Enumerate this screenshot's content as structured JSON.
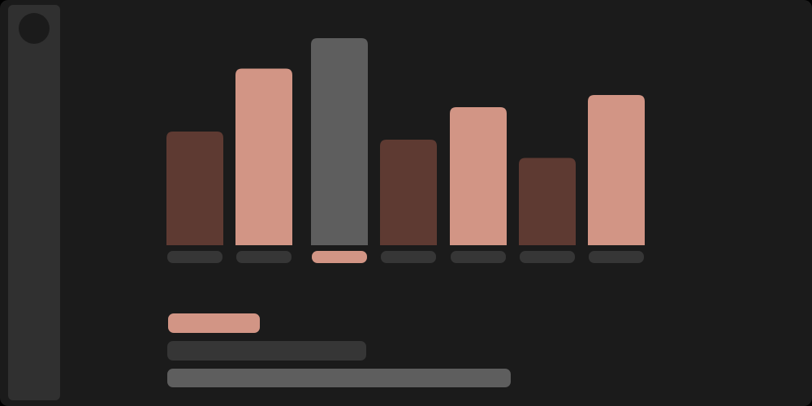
{
  "colors": {
    "background": "#1b1b1b",
    "sidebar": "#303030",
    "bar_dark": "#5e3a32",
    "bar_light": "#d29585",
    "bar_selected": "#5e5e5e",
    "label_placeholder": "#363636",
    "label_selected": "#d29585"
  },
  "chart_data": {
    "type": "bar",
    "categories": [
      "",
      "",
      "",
      "",
      "",
      "",
      ""
    ],
    "values": [
      5.6,
      8.7,
      10.2,
      5.2,
      6.8,
      4.3,
      7.4
    ],
    "ylim": [
      0,
      12
    ],
    "grid": false,
    "selected_index": 2,
    "bar_color_keys": [
      "bar_dark",
      "bar_light",
      "bar_selected",
      "bar_dark",
      "bar_light",
      "bar_dark",
      "bar_light"
    ]
  },
  "legend": [
    {
      "name": "",
      "color_key": "bar_light"
    },
    {
      "name": "",
      "color_key": "label_placeholder"
    },
    {
      "name": "",
      "color_key": "bar_selected"
    }
  ]
}
